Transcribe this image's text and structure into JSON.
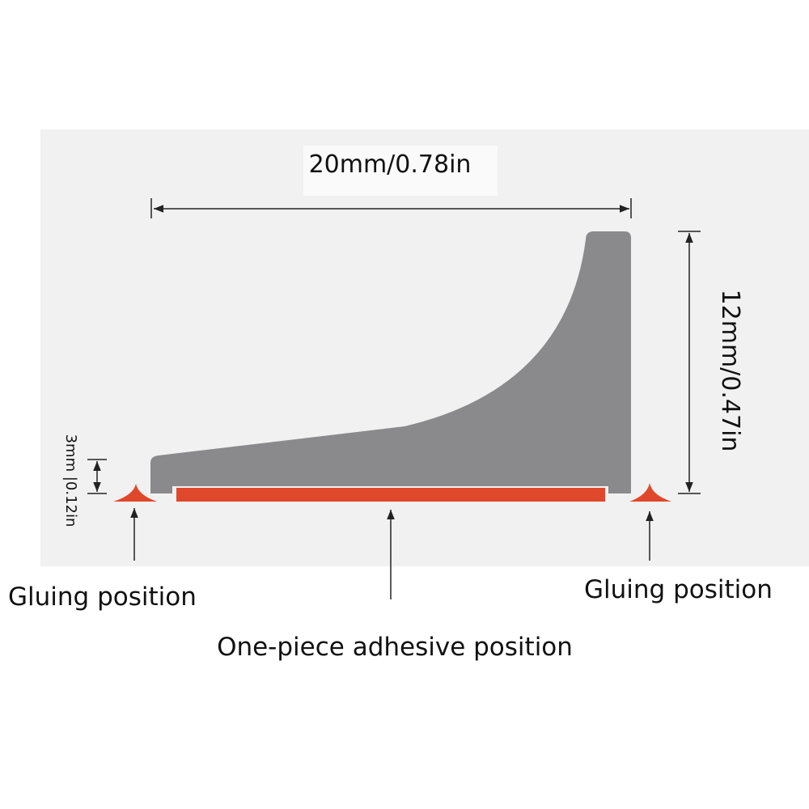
{
  "dimensions": {
    "width": "20mm/0.78in",
    "height": "12mm/0.47in",
    "base": "3mm |0.12in"
  },
  "labels": {
    "left_glue": "Gluing position",
    "right_glue": "Gluing position",
    "adhesive": "One-piece adhesive position"
  }
}
